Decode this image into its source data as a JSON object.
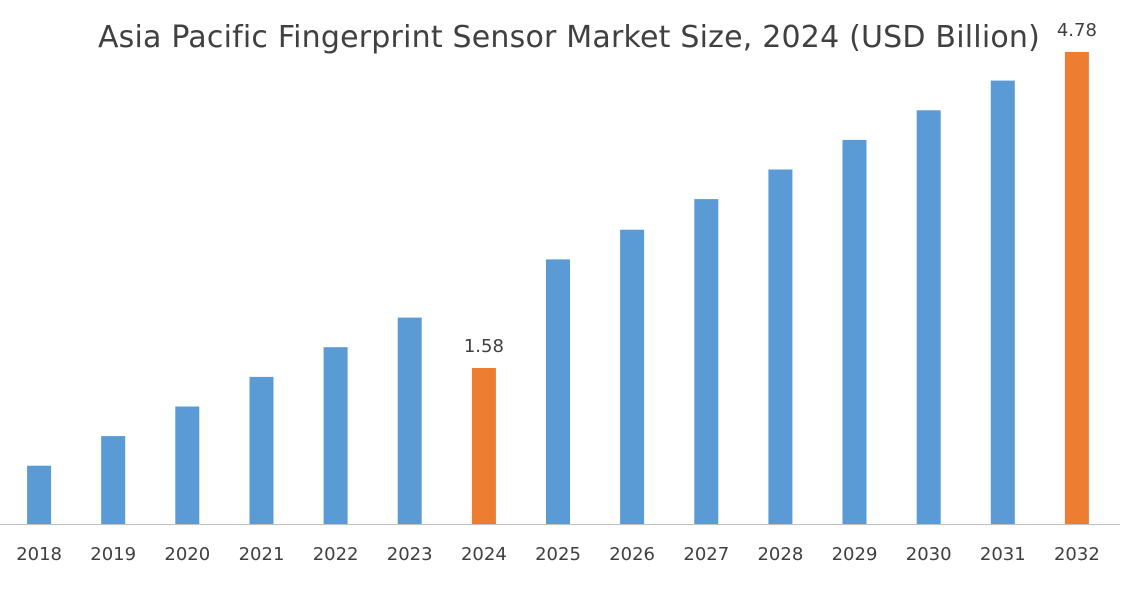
{
  "chart_data": {
    "type": "bar",
    "title": "Asia Pacific Fingerprint Sensor Market Size, 2024 (USD Billion)",
    "xlabel": "",
    "ylabel": "",
    "categories": [
      "2018",
      "2019",
      "2020",
      "2021",
      "2022",
      "2023",
      "2024",
      "2025",
      "2026",
      "2027",
      "2028",
      "2029",
      "2030",
      "2031",
      "2032"
    ],
    "values": [
      0.59,
      0.89,
      1.19,
      1.49,
      1.79,
      2.09,
      1.58,
      2.68,
      2.98,
      3.29,
      3.59,
      3.89,
      4.19,
      4.49,
      4.78
    ],
    "highlighted_categories": [
      "2024",
      "2032"
    ],
    "data_labels": [
      {
        "category": "2024",
        "text": "1.58"
      },
      {
        "category": "2032",
        "text": "4.78"
      }
    ],
    "ylim": [
      0,
      4.78
    ],
    "grid": false,
    "legend": "none",
    "colors": {
      "bar": "#5b9bd5",
      "highlight": "#ed7d31",
      "axis": "#bfbfbf",
      "text": "#404040"
    }
  }
}
